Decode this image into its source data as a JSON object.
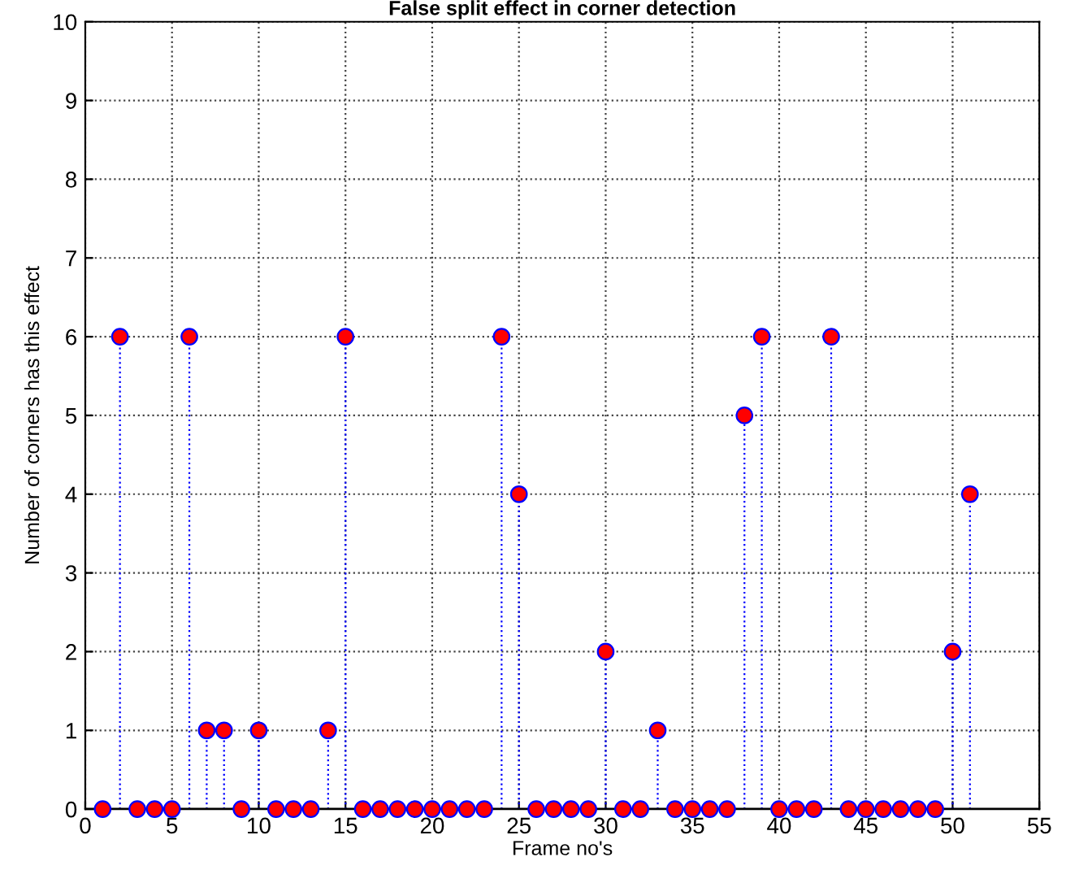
{
  "chart_data": {
    "type": "lollipop",
    "title": "False split effect in corner detection",
    "xlabel": "Frame no's",
    "ylabel": "Number of corners has this effect",
    "x": [
      1,
      2,
      3,
      4,
      5,
      6,
      7,
      8,
      9,
      10,
      11,
      12,
      13,
      14,
      15,
      16,
      17,
      18,
      19,
      20,
      21,
      22,
      23,
      24,
      25,
      26,
      27,
      28,
      29,
      30,
      31,
      32,
      33,
      34,
      35,
      36,
      37,
      38,
      39,
      40,
      41,
      42,
      43,
      44,
      45,
      46,
      47,
      48,
      49,
      50,
      51
    ],
    "series": [
      {
        "color": "#ff0000",
        "values": [
          0,
          6,
          0,
          0,
          0,
          6,
          1,
          1,
          0,
          1,
          0,
          0,
          0,
          1,
          6,
          0,
          0,
          0,
          0,
          0,
          0,
          0,
          0,
          6,
          4,
          0,
          0,
          0,
          0,
          2,
          0,
          0,
          1,
          0,
          0,
          0,
          0,
          5,
          6,
          0,
          0,
          0,
          6,
          0,
          0,
          0,
          0,
          0,
          0,
          2,
          4
        ]
      }
    ],
    "xlim": [
      0,
      55
    ],
    "xticks": [
      0,
      5,
      10,
      15,
      20,
      25,
      30,
      35,
      40,
      45,
      50,
      55
    ],
    "ylim": [
      0,
      10
    ],
    "yticks": [
      0,
      1,
      2,
      3,
      4,
      5,
      6,
      7,
      8,
      9,
      10
    ],
    "grid": true,
    "marker": "circle",
    "line_style": "dotted",
    "legend": false
  }
}
